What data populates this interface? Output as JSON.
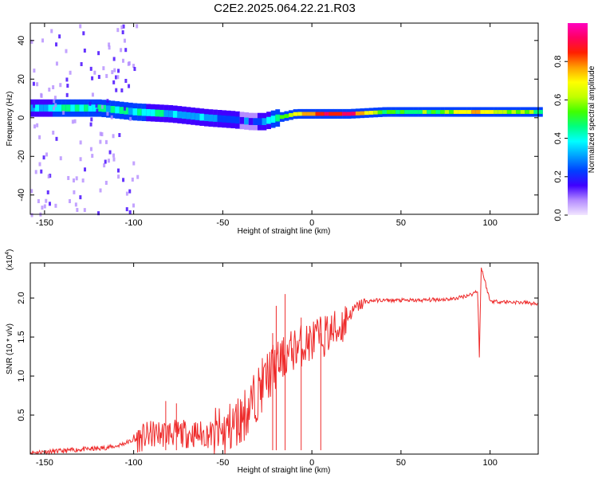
{
  "title": "C2E2.2025.064.22.21.R03",
  "chart_data": [
    {
      "type": "heatmap",
      "title": "C2E2.2025.064.22.21.R03",
      "xlabel": "Height of straight line (km)",
      "ylabel": "Frequency (Hz)",
      "xlim": [
        -158,
        127
      ],
      "ylim": [
        -50,
        49
      ],
      "xticks": [
        -150,
        -100,
        -50,
        0,
        50,
        100
      ],
      "yticks": [
        -40,
        -20,
        0,
        20,
        40
      ],
      "colorbar": {
        "label": "Normalized spectral amplitude",
        "range": [
          0,
          1
        ],
        "ticks": [
          0.0,
          0.2,
          0.4,
          0.6,
          0.8
        ],
        "tick_labels": [
          "0.0",
          "0.2",
          "0.4",
          "0.6",
          "0.8"
        ],
        "colors": [
          "#f2e6ff",
          "#b48cff",
          "#4000ff",
          "#0040ff",
          "#00a0ff",
          "#00ffff",
          "#00ff80",
          "#40ff00",
          "#c0ff00",
          "#ffff00",
          "#ffa000",
          "#ff2000",
          "#ff0060",
          "#ff00c0"
        ]
      },
      "ridge": {
        "x": [
          -158,
          -140,
          -120,
          -100,
          -80,
          -60,
          -45,
          -35,
          -28,
          -20,
          -10,
          0,
          10,
          20,
          40,
          60,
          80,
          95,
          110,
          127
        ],
        "freq_hz": [
          5,
          5,
          5,
          3,
          2,
          0,
          -1,
          -2,
          -2,
          0,
          2,
          2,
          2,
          2,
          3,
          3,
          3,
          3,
          3,
          3
        ],
        "amplitude": [
          0.35,
          0.4,
          0.4,
          0.4,
          0.35,
          0.3,
          0.25,
          0.2,
          0.25,
          0.5,
          0.7,
          0.8,
          0.85,
          0.9,
          0.5,
          0.5,
          0.6,
          0.75,
          0.6,
          0.5
        ]
      }
    },
    {
      "type": "line",
      "xlabel": "Height of straight line (km)",
      "ylabel": "SNR (10 * v/v)",
      "y_multiplier_label": "(x10",
      "y_multiplier_exp": "4",
      "xlim": [
        -158,
        127
      ],
      "ylim": [
        0,
        2.45
      ],
      "xticks": [
        -150,
        -100,
        -50,
        0,
        50,
        100
      ],
      "yticks": [
        0.5,
        1.0,
        1.5,
        2.0
      ],
      "ytick_labels": [
        "0.5",
        "1.0",
        "1.5",
        "2.0"
      ],
      "line_color": "#ee2b2b",
      "series": [
        {
          "name": "SNR",
          "x": [
            -158,
            -150,
            -140,
            -130,
            -120,
            -110,
            -100,
            -90,
            -80,
            -70,
            -60,
            -50,
            -45,
            -40,
            -35,
            -30,
            -25,
            -20,
            -15,
            -10,
            -5,
            0,
            5,
            10,
            15,
            20,
            25,
            30,
            35,
            40,
            50,
            60,
            70,
            80,
            90,
            93,
            94,
            95,
            100,
            110,
            120,
            127
          ],
          "y": [
            0.02,
            0.03,
            0.04,
            0.06,
            0.07,
            0.1,
            0.18,
            0.25,
            0.27,
            0.26,
            0.25,
            0.26,
            0.35,
            0.45,
            0.6,
            0.8,
            1.0,
            1.15,
            1.25,
            1.35,
            1.4,
            1.45,
            1.5,
            1.55,
            1.6,
            1.75,
            1.88,
            1.95,
            1.97,
            1.97,
            1.97,
            1.97,
            1.98,
            1.99,
            2.05,
            2.1,
            1.25,
            2.4,
            1.96,
            1.95,
            1.94,
            1.92
          ]
        }
      ],
      "spikes": [
        {
          "x": -82,
          "y": 0.68
        },
        {
          "x": -76,
          "y": 0.65
        },
        {
          "x": -22,
          "y": 1.55
        },
        {
          "x": -15,
          "y": 2.05
        },
        {
          "x": -20,
          "y": 1.9
        },
        {
          "x": -6,
          "y": 1.75
        },
        {
          "x": 5,
          "y": 1.55
        }
      ]
    }
  ]
}
